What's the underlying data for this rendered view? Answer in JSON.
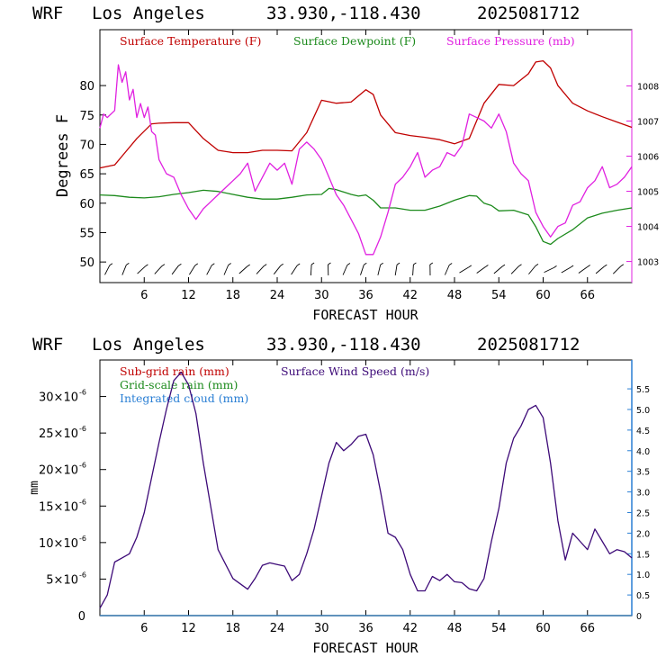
{
  "charts": [
    {
      "header": {
        "model": "WRF",
        "location": "Los Angeles",
        "coords": "33.930,-118.430",
        "run": "2025081712"
      },
      "xlabel": "FORECAST HOUR",
      "ylabel": "Degrees F",
      "xticks": [
        "6",
        "12",
        "18",
        "24",
        "30",
        "36",
        "42",
        "48",
        "54",
        "60",
        "66"
      ],
      "yticks": [
        "50",
        "55",
        "60",
        "65",
        "70",
        "75",
        "80"
      ],
      "rticks": [
        "1003",
        "1004",
        "1005",
        "1006",
        "1007",
        "1008"
      ],
      "legend": [
        "Surface Temperature (F)",
        "Surface Dewpoint (F)",
        "Surface Pressure (mb)"
      ]
    },
    {
      "header": {
        "model": "WRF",
        "location": "Los Angeles",
        "coords": "33.930,-118.430",
        "run": "2025081712"
      },
      "xlabel": "FORECAST HOUR",
      "ylabel": "mm",
      "xticks": [
        "6",
        "12",
        "18",
        "24",
        "30",
        "36",
        "42",
        "48",
        "54",
        "60",
        "66"
      ],
      "yticks": [
        "0",
        "5×10",
        "10×10",
        "15×10",
        "20×10",
        "25×10",
        "30×10"
      ],
      "ytick_exponent": "-6",
      "rticks": [
        "0",
        "0.5",
        "1.0",
        "1.5",
        "2.0",
        "2.5",
        "3.0",
        "3.5",
        "4.0",
        "4.5",
        "5.0",
        "5.5"
      ],
      "legend": [
        "Sub-grid rain (mm)",
        "Surface Wind Speed (m/s)",
        "Grid-scale rain (mm)",
        "Integrated cloud (mm)"
      ]
    }
  ],
  "colors": {
    "temperature": "#c00000",
    "dewpoint": "#1c8a1c",
    "pressure": "#e020e0",
    "wind": "#3d0a78",
    "subgrid": "#c00000",
    "gridscale": "#1c8a1c",
    "cloud": "#2a7fd4",
    "frame": "#000000"
  },
  "chart_data": [
    {
      "type": "line",
      "x_unit": "forecast hour",
      "xlim": [
        0,
        72
      ],
      "ylim_left": [
        46.5,
        89.5
      ],
      "ylim_right": [
        1002.4,
        1009.6
      ],
      "series": [
        {
          "name": "Surface Temperature (F)",
          "axis": "left",
          "x": [
            0,
            2,
            3,
            5,
            7,
            8,
            10,
            12,
            14,
            16,
            18,
            20,
            22,
            24,
            26,
            28,
            30,
            32,
            34,
            36,
            37,
            38,
            40,
            42,
            44,
            46,
            48,
            50,
            52,
            54,
            56,
            58,
            59,
            60,
            61,
            62,
            64,
            66,
            68,
            70,
            72
          ],
          "y": [
            66,
            66.5,
            68,
            71,
            73.5,
            73.6,
            73.7,
            73.7,
            71,
            69,
            68.6,
            68.6,
            69,
            69,
            68.9,
            72,
            77.5,
            77,
            77.2,
            79.3,
            78.5,
            75,
            72,
            71.5,
            71.2,
            70.8,
            70.1,
            71,
            77,
            80.2,
            80,
            82,
            84,
            84.2,
            83,
            80,
            77,
            75.7,
            74.7,
            73.8,
            72.9
          ]
        },
        {
          "name": "Surface Dewpoint (F)",
          "axis": "left",
          "x": [
            0,
            2,
            4,
            6,
            8,
            10,
            12,
            14,
            16,
            18,
            20,
            22,
            24,
            26,
            28,
            30,
            31,
            32,
            34,
            35,
            36,
            37,
            38,
            40,
            42,
            44,
            46,
            48,
            50,
            51,
            52,
            53,
            54,
            56,
            58,
            59,
            60,
            61,
            62,
            64,
            66,
            68,
            70,
            72
          ],
          "y": [
            61.4,
            61.3,
            61,
            60.9,
            61.1,
            61.5,
            61.8,
            62.2,
            62,
            61.5,
            61,
            60.7,
            60.7,
            61,
            61.4,
            61.5,
            62.5,
            62.3,
            61.5,
            61.2,
            61.4,
            60.5,
            59.2,
            59.2,
            58.8,
            58.8,
            59.5,
            60.5,
            61.3,
            61.2,
            60,
            59.6,
            58.7,
            58.8,
            58,
            56,
            53.5,
            53,
            54,
            55.5,
            57.5,
            58.3,
            58.8,
            59.2
          ]
        },
        {
          "name": "Surface Pressure (mb)",
          "axis": "right",
          "x": [
            0,
            0.5,
            1,
            2,
            2.5,
            3,
            3.5,
            4,
            4.5,
            5,
            5.5,
            6,
            6.5,
            7,
            7.5,
            8,
            9,
            10,
            11,
            12,
            13,
            14,
            15,
            16,
            17,
            18,
            19,
            20,
            21,
            22,
            23,
            24,
            25,
            26,
            27,
            28,
            29,
            30,
            31,
            32,
            33,
            34,
            35,
            36,
            37,
            38,
            39,
            40,
            41,
            42,
            43,
            44,
            45,
            46,
            47,
            48,
            49,
            50,
            51,
            52,
            53,
            54,
            55,
            56,
            57,
            58,
            59,
            60,
            61,
            62,
            63,
            64,
            65,
            66,
            67,
            68,
            69,
            70,
            71,
            72
          ],
          "y": [
            1006.8,
            1007.2,
            1007.1,
            1007.3,
            1008.6,
            1008.1,
            1008.4,
            1007.6,
            1007.9,
            1007.1,
            1007.5,
            1007.1,
            1007.4,
            1006.7,
            1006.6,
            1005.9,
            1005.5,
            1005.4,
            1004.9,
            1004.5,
            1004.2,
            1004.5,
            1004.7,
            1004.9,
            1005.1,
            1005.3,
            1005.5,
            1005.8,
            1005.0,
            1005.4,
            1005.8,
            1005.6,
            1005.8,
            1005.2,
            1006.2,
            1006.4,
            1006.2,
            1005.9,
            1005.4,
            1004.9,
            1004.6,
            1004.2,
            1003.8,
            1003.2,
            1003.2,
            1003.7,
            1004.4,
            1005.2,
            1005.4,
            1005.7,
            1006.1,
            1005.4,
            1005.6,
            1005.7,
            1006.1,
            1006.0,
            1006.3,
            1007.2,
            1007.1,
            1007.0,
            1006.8,
            1007.2,
            1006.7,
            1005.8,
            1005.5,
            1005.3,
            1004.4,
            1004.0,
            1003.7,
            1004.0,
            1004.1,
            1004.6,
            1004.7,
            1005.1,
            1005.3,
            1005.7,
            1005.1,
            1005.2,
            1005.4,
            1005.7
          ]
        }
      ]
    },
    {
      "type": "line",
      "x_unit": "forecast hour",
      "xlim": [
        0,
        72
      ],
      "ylim_left": [
        0,
        35
      ],
      "ylim_left_unit": "1e-6 mm",
      "ylim_right": [
        0,
        6.2
      ],
      "series": [
        {
          "name": "Surface Wind Speed (m/s)",
          "axis": "right",
          "x": [
            0,
            1,
            2,
            3,
            4,
            5,
            6,
            8,
            9,
            10,
            11,
            12,
            13,
            14,
            16,
            18,
            20,
            21,
            22,
            23,
            24,
            25,
            26,
            27,
            28,
            29,
            30,
            31,
            32,
            33,
            34,
            35,
            36,
            37,
            38,
            39,
            40,
            41,
            42,
            43,
            44,
            45,
            46,
            47,
            48,
            49,
            50,
            51,
            52,
            53,
            54,
            55,
            56,
            57,
            58,
            59,
            60,
            61,
            62,
            63,
            64,
            65,
            66,
            67,
            68,
            69,
            70,
            71,
            72
          ],
          "y": [
            0.18,
            0.5,
            1.3,
            1.4,
            1.5,
            1.9,
            2.5,
            4.2,
            5.0,
            5.7,
            5.9,
            5.6,
            4.9,
            3.7,
            1.6,
            0.9,
            0.64,
            0.9,
            1.22,
            1.28,
            1.24,
            1.2,
            0.85,
            1.0,
            1.5,
            2.1,
            2.9,
            3.7,
            4.2,
            4.0,
            4.15,
            4.35,
            4.4,
            3.9,
            3.0,
            2.0,
            1.9,
            1.6,
            1.0,
            0.6,
            0.6,
            0.95,
            0.85,
            1.0,
            0.82,
            0.8,
            0.65,
            0.6,
            0.9,
            1.8,
            2.6,
            3.7,
            4.3,
            4.6,
            5.0,
            5.1,
            4.8,
            3.7,
            2.3,
            1.35,
            2.0,
            1.8,
            1.6,
            2.1,
            1.8,
            1.5,
            1.6,
            1.55,
            1.4
          ]
        },
        {
          "name": "Sub-grid rain (mm)",
          "axis": "left",
          "x": [
            0,
            72
          ],
          "y": [
            0,
            0
          ]
        },
        {
          "name": "Grid-scale rain (mm)",
          "axis": "left",
          "x": [
            0,
            72
          ],
          "y": [
            0,
            0
          ]
        },
        {
          "name": "Integrated cloud (mm)",
          "axis": "left",
          "x": [
            0,
            72
          ],
          "y": [
            0,
            0
          ]
        }
      ]
    }
  ]
}
